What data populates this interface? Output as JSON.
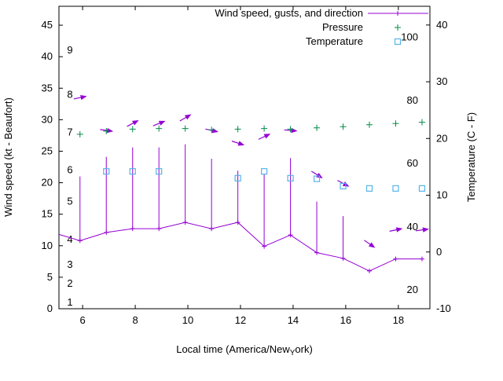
{
  "chart_data": {
    "type": "line",
    "title": "",
    "xlabel": "Local time (America/New_York)",
    "xlabel_parts": {
      "pre": "Local time (America/New",
      "sub": "Y",
      "post": "ork)"
    },
    "ylabel_left": "Wind speed (kt - Beaufort)",
    "ylabel_right": "Temperature (C - F)",
    "x_range": [
      5.1,
      19.2
    ],
    "y_left_range_kt": [
      0,
      48
    ],
    "y_right_range_c": [
      -10,
      43.3
    ],
    "grid": false,
    "legend_position": "top-right-inside",
    "x_ticks": [
      6,
      8,
      10,
      12,
      14,
      16,
      18
    ],
    "y_left_ticks_kt": [
      0,
      5,
      10,
      15,
      20,
      25,
      30,
      35,
      40,
      45
    ],
    "y_right_ticks_c": [
      -10,
      0,
      10,
      20,
      30,
      40
    ],
    "beaufort_labels": [
      {
        "b": "1",
        "kt": 1
      },
      {
        "b": "2",
        "kt": 4
      },
      {
        "b": "3",
        "kt": 7
      },
      {
        "b": "4",
        "kt": 11
      },
      {
        "b": "5",
        "kt": 17
      },
      {
        "b": "6",
        "kt": 22
      },
      {
        "b": "7",
        "kt": 28
      },
      {
        "b": "8",
        "kt": 34
      },
      {
        "b": "9",
        "kt": 41
      }
    ],
    "fahrenheit_labels": [
      {
        "f": "20",
        "c": -6.7
      },
      {
        "f": "40",
        "c": 4.4
      },
      {
        "f": "60",
        "c": 15.6
      },
      {
        "f": "80",
        "c": 26.7
      },
      {
        "f": "100",
        "c": 37.8
      }
    ],
    "legend": [
      {
        "label": "Wind speed, gusts, and direction",
        "color": "#9400d3",
        "marker": "line-plus"
      },
      {
        "label": "Pressure",
        "color": "#008b45",
        "marker": "plus"
      },
      {
        "label": "Temperature",
        "color": "#56b4e9",
        "marker": "open-square"
      }
    ],
    "series": {
      "wind_speed_kt": {
        "x": [
          5.1,
          5.9,
          6.9,
          7.9,
          8.9,
          9.9,
          10.9,
          11.9,
          12.9,
          13.9,
          14.9,
          15.9,
          16.9,
          17.9,
          18.9
        ],
        "y": [
          11.8,
          10.8,
          12.1,
          12.7,
          12.7,
          13.7,
          12.7,
          13.7,
          9.9,
          11.7,
          8.9,
          8.0,
          6.0,
          7.9,
          7.9
        ]
      },
      "wind_gust_kt": {
        "x": [
          5.9,
          6.9,
          7.9,
          8.9,
          9.9,
          10.9,
          11.9,
          12.9,
          13.9,
          14.9,
          15.9
        ],
        "y": [
          21.0,
          24.1,
          25.6,
          25.6,
          26.1,
          23.8,
          21.9,
          21.4,
          23.9,
          17.0,
          14.7
        ]
      },
      "wind_direction": [
        {
          "x": 5.9,
          "y_kt": 33.5,
          "angle_deg": -12
        },
        {
          "x": 6.9,
          "y_kt": 28.3,
          "angle_deg": 8
        },
        {
          "x": 7.9,
          "y_kt": 29.4,
          "angle_deg": -28
        },
        {
          "x": 8.9,
          "y_kt": 29.4,
          "angle_deg": -22
        },
        {
          "x": 9.9,
          "y_kt": 30.3,
          "angle_deg": -30
        },
        {
          "x": 10.9,
          "y_kt": 28.3,
          "angle_deg": 12
        },
        {
          "x": 11.9,
          "y_kt": 26.3,
          "angle_deg": 18
        },
        {
          "x": 12.9,
          "y_kt": 27.3,
          "angle_deg": -25
        },
        {
          "x": 13.9,
          "y_kt": 28.3,
          "angle_deg": 5
        },
        {
          "x": 14.9,
          "y_kt": 21.3,
          "angle_deg": 32
        },
        {
          "x": 15.9,
          "y_kt": 19.9,
          "angle_deg": 28
        },
        {
          "x": 16.9,
          "y_kt": 10.3,
          "angle_deg": 35
        },
        {
          "x": 17.9,
          "y_kt": 12.5,
          "angle_deg": -12
        },
        {
          "x": 18.9,
          "y_kt": 12.5,
          "angle_deg": -8
        }
      ],
      "pressure_y_in_left_axis_units": {
        "x": [
          5.9,
          6.9,
          7.9,
          8.9,
          9.9,
          10.9,
          11.9,
          12.9,
          13.9,
          14.9,
          15.9,
          16.9,
          17.9,
          18.9
        ],
        "y": [
          27.7,
          28.2,
          28.5,
          28.6,
          28.6,
          28.4,
          28.5,
          28.6,
          28.5,
          28.7,
          28.9,
          29.2,
          29.4,
          29.6
        ]
      },
      "temperature_c": {
        "x": [
          6.9,
          7.9,
          8.9,
          11.9,
          12.9,
          13.9,
          14.9,
          15.9,
          16.9,
          17.9,
          18.9
        ],
        "y": [
          14.2,
          14.2,
          14.2,
          13.0,
          14.2,
          13.0,
          12.9,
          11.6,
          11.2,
          11.2,
          11.2
        ]
      }
    }
  }
}
